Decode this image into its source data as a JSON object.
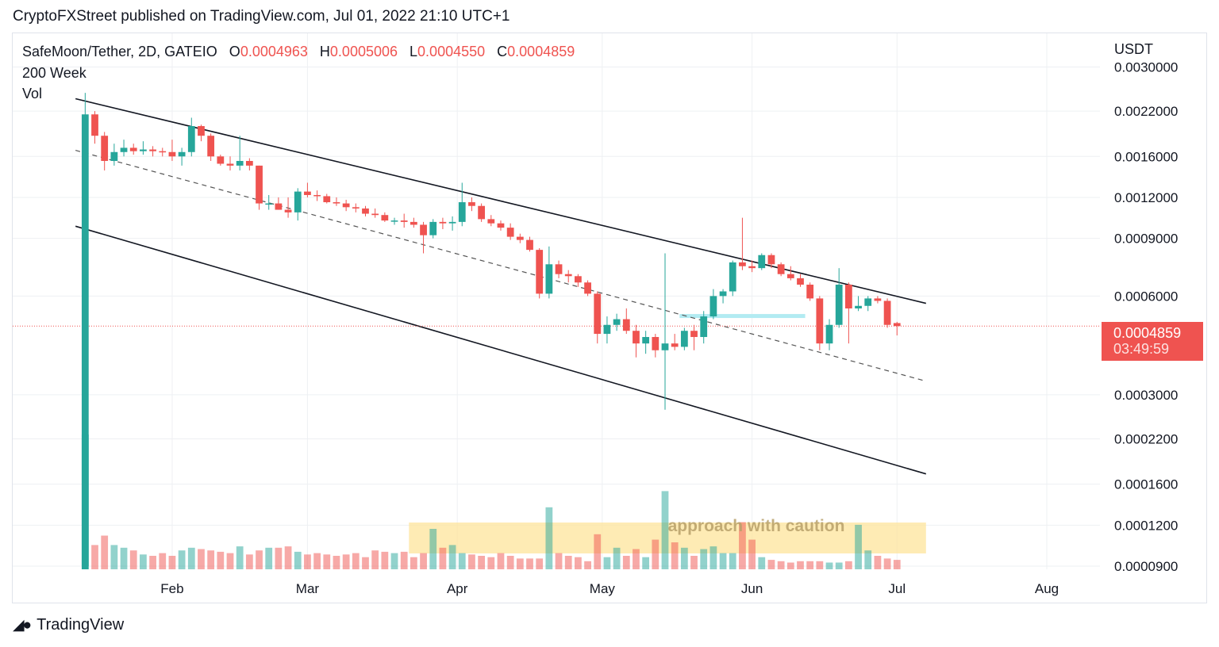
{
  "header": {
    "publisher_line": "CryptoFXStreet published on TradingView.com, Jul 01, 2022 21:10 UTC+1"
  },
  "legend": {
    "symbol": "SafeMoon/Tether, 2D, GATEIO",
    "o_label": "O",
    "o_value": "0.0004963",
    "h_label": "H",
    "h_value": "0.0005006",
    "l_label": "L",
    "l_value": "0.0004550",
    "c_label": "C",
    "c_value": "0.0004859",
    "indicator_1": "200 Week",
    "indicator_2": "Vol"
  },
  "price_axis": {
    "currency": "USDT",
    "last_price": "0.0004859",
    "countdown": "03:49:59"
  },
  "footer": {
    "brand": "TradingView"
  },
  "colors": {
    "up": "#26a69a",
    "down": "#ef5350",
    "grid": "#eef0f3",
    "zone": "#fde49b"
  },
  "chart_data": {
    "type": "candlestick",
    "scale": "log",
    "price_ticks": [
      "0.0030000",
      "0.0022000",
      "0.0016000",
      "0.0012000",
      "0.0009000",
      "0.0006000",
      "0.0003000",
      "0.0002200",
      "0.0001600",
      "0.0001200",
      "0.0000900"
    ],
    "price_tick_values": [
      0.003,
      0.0022,
      0.0016,
      0.0012,
      0.0009,
      0.0006,
      0.0003,
      0.00022,
      0.00016,
      0.00012,
      9e-05
    ],
    "ylim": [
      8.8e-05,
      0.0038
    ],
    "x_ticks": [
      "Feb",
      "Mar",
      "Apr",
      "May",
      "Jun",
      "Jul",
      "Aug"
    ],
    "x_tick_dates": [
      "2022-02-01",
      "2022-03-01",
      "2022-04-01",
      "2022-05-01",
      "2022-06-01",
      "2022-07-01",
      "2022-08-01"
    ],
    "xlim": [
      "2021-12-30",
      "2022-08-12"
    ],
    "annotation": "approach with caution",
    "last_close": 0.0004859,
    "channel": {
      "upper": [
        [
          "2022-01-12",
          0.0024
        ],
        [
          "2022-07-07",
          0.00057
        ]
      ],
      "middle": [
        [
          "2022-01-12",
          0.00167
        ],
        [
          "2022-07-07",
          0.00033
        ]
      ],
      "lower": [
        [
          "2022-01-12",
          0.00098
        ],
        [
          "2022-07-07",
          0.000172
        ]
      ]
    },
    "resistance_zone": {
      "from": "2022-05-17",
      "to": "2022-06-12",
      "price": 0.00052
    },
    "volume_zone": {
      "from": "2022-03-22",
      "to": "2022-07-07",
      "annotation": "approach with caution"
    },
    "candles": [
      {
        "d": "2022-01-14",
        "o": 9e-05,
        "h": 0.0025,
        "l": 9e-05,
        "c": 0.00215,
        "v": 1.0
      },
      {
        "d": "2022-01-16",
        "o": 0.00215,
        "h": 0.0022,
        "l": 0.00175,
        "c": 0.00185,
        "v": 0.18
      },
      {
        "d": "2022-01-18",
        "o": 0.00185,
        "h": 0.0019,
        "l": 0.00145,
        "c": 0.00155,
        "v": 0.25
      },
      {
        "d": "2022-01-20",
        "o": 0.00155,
        "h": 0.00175,
        "l": 0.0015,
        "c": 0.00165,
        "v": 0.18
      },
      {
        "d": "2022-01-22",
        "o": 0.00165,
        "h": 0.0018,
        "l": 0.0016,
        "c": 0.0017,
        "v": 0.16
      },
      {
        "d": "2022-01-24",
        "o": 0.0017,
        "h": 0.00175,
        "l": 0.00162,
        "c": 0.00166,
        "v": 0.14
      },
      {
        "d": "2022-01-26",
        "o": 0.00166,
        "h": 0.00178,
        "l": 0.00162,
        "c": 0.00168,
        "v": 0.11
      },
      {
        "d": "2022-01-28",
        "o": 0.00168,
        "h": 0.00172,
        "l": 0.0016,
        "c": 0.00166,
        "v": 0.1
      },
      {
        "d": "2022-01-30",
        "o": 0.00166,
        "h": 0.0017,
        "l": 0.0016,
        "c": 0.00165,
        "v": 0.12
      },
      {
        "d": "2022-02-01",
        "o": 0.00165,
        "h": 0.0018,
        "l": 0.00155,
        "c": 0.0016,
        "v": 0.1
      },
      {
        "d": "2022-02-03",
        "o": 0.0016,
        "h": 0.0017,
        "l": 0.0015,
        "c": 0.00165,
        "v": 0.14
      },
      {
        "d": "2022-02-05",
        "o": 0.00165,
        "h": 0.0021,
        "l": 0.0016,
        "c": 0.00198,
        "v": 0.16
      },
      {
        "d": "2022-02-07",
        "o": 0.00198,
        "h": 0.002,
        "l": 0.00178,
        "c": 0.00185,
        "v": 0.15
      },
      {
        "d": "2022-02-09",
        "o": 0.00185,
        "h": 0.00188,
        "l": 0.00155,
        "c": 0.0016,
        "v": 0.14
      },
      {
        "d": "2022-02-11",
        "o": 0.0016,
        "h": 0.00162,
        "l": 0.0015,
        "c": 0.00152,
        "v": 0.13
      },
      {
        "d": "2022-02-13",
        "o": 0.00152,
        "h": 0.0016,
        "l": 0.00145,
        "c": 0.0015,
        "v": 0.12
      },
      {
        "d": "2022-02-15",
        "o": 0.0015,
        "h": 0.00185,
        "l": 0.00145,
        "c": 0.00155,
        "v": 0.17
      },
      {
        "d": "2022-02-17",
        "o": 0.00155,
        "h": 0.00158,
        "l": 0.00145,
        "c": 0.0015,
        "v": 0.11
      },
      {
        "d": "2022-02-19",
        "o": 0.0015,
        "h": 0.0015,
        "l": 0.0011,
        "c": 0.00115,
        "v": 0.14
      },
      {
        "d": "2022-02-21",
        "o": 0.00115,
        "h": 0.00122,
        "l": 0.0011,
        "c": 0.00115,
        "v": 0.16
      },
      {
        "d": "2022-02-23",
        "o": 0.00115,
        "h": 0.0012,
        "l": 0.0011,
        "c": 0.0011,
        "v": 0.16
      },
      {
        "d": "2022-02-25",
        "o": 0.0011,
        "h": 0.0012,
        "l": 0.00104,
        "c": 0.00108,
        "v": 0.17
      },
      {
        "d": "2022-02-27",
        "o": 0.00108,
        "h": 0.00128,
        "l": 0.00102,
        "c": 0.00125,
        "v": 0.13
      },
      {
        "d": "2022-03-01",
        "o": 0.00125,
        "h": 0.00133,
        "l": 0.0012,
        "c": 0.00122,
        "v": 0.11
      },
      {
        "d": "2022-03-03",
        "o": 0.00122,
        "h": 0.00126,
        "l": 0.00117,
        "c": 0.00121,
        "v": 0.12
      },
      {
        "d": "2022-03-05",
        "o": 0.00121,
        "h": 0.00123,
        "l": 0.00115,
        "c": 0.00116,
        "v": 0.11
      },
      {
        "d": "2022-03-07",
        "o": 0.00116,
        "h": 0.0012,
        "l": 0.00113,
        "c": 0.00115,
        "v": 0.1
      },
      {
        "d": "2022-03-09",
        "o": 0.00115,
        "h": 0.00118,
        "l": 0.00109,
        "c": 0.00112,
        "v": 0.11
      },
      {
        "d": "2022-03-11",
        "o": 0.00112,
        "h": 0.00115,
        "l": 0.00108,
        "c": 0.00111,
        "v": 0.12
      },
      {
        "d": "2022-03-13",
        "o": 0.00111,
        "h": 0.00113,
        "l": 0.00105,
        "c": 0.00107,
        "v": 0.09
      },
      {
        "d": "2022-03-15",
        "o": 0.00107,
        "h": 0.00111,
        "l": 0.00104,
        "c": 0.00106,
        "v": 0.14
      },
      {
        "d": "2022-03-17",
        "o": 0.00106,
        "h": 0.00108,
        "l": 0.00101,
        "c": 0.00102,
        "v": 0.13
      },
      {
        "d": "2022-03-19",
        "o": 0.00102,
        "h": 0.00104,
        "l": 0.00099,
        "c": 0.00102,
        "v": 0.12
      },
      {
        "d": "2022-03-21",
        "o": 0.00102,
        "h": 0.00107,
        "l": 0.00097,
        "c": 0.00101,
        "v": 0.13
      },
      {
        "d": "2022-03-23",
        "o": 0.00101,
        "h": 0.00104,
        "l": 0.00097,
        "c": 0.00099,
        "v": 0.09
      },
      {
        "d": "2022-03-25",
        "o": 0.00099,
        "h": 0.00101,
        "l": 0.00081,
        "c": 0.00092,
        "v": 0.12
      },
      {
        "d": "2022-03-27",
        "o": 0.00092,
        "h": 0.00103,
        "l": 0.0009,
        "c": 0.00101,
        "v": 0.3
      },
      {
        "d": "2022-03-29",
        "o": 0.00101,
        "h": 0.00104,
        "l": 0.00096,
        "c": 0.001,
        "v": 0.16
      },
      {
        "d": "2022-03-31",
        "o": 0.001,
        "h": 0.00105,
        "l": 0.00095,
        "c": 0.00101,
        "v": 0.18
      },
      {
        "d": "2022-04-02",
        "o": 0.00101,
        "h": 0.00133,
        "l": 0.00098,
        "c": 0.00116,
        "v": 0.12
      },
      {
        "d": "2022-04-04",
        "o": 0.00116,
        "h": 0.0012,
        "l": 0.00109,
        "c": 0.00113,
        "v": 0.11
      },
      {
        "d": "2022-04-06",
        "o": 0.00113,
        "h": 0.00115,
        "l": 0.00101,
        "c": 0.00103,
        "v": 0.1
      },
      {
        "d": "2022-04-08",
        "o": 0.00103,
        "h": 0.00106,
        "l": 0.00098,
        "c": 0.001,
        "v": 0.09
      },
      {
        "d": "2022-04-10",
        "o": 0.001,
        "h": 0.00102,
        "l": 0.00095,
        "c": 0.00097,
        "v": 0.12
      },
      {
        "d": "2022-04-12",
        "o": 0.00097,
        "h": 0.001,
        "l": 0.00089,
        "c": 0.00091,
        "v": 0.1
      },
      {
        "d": "2022-04-14",
        "o": 0.00091,
        "h": 0.00093,
        "l": 0.00087,
        "c": 0.00089,
        "v": 0.08
      },
      {
        "d": "2022-04-16",
        "o": 0.00089,
        "h": 0.00091,
        "l": 0.00082,
        "c": 0.00083,
        "v": 0.08
      },
      {
        "d": "2022-04-18",
        "o": 0.00083,
        "h": 0.00084,
        "l": 0.00059,
        "c": 0.00061,
        "v": 0.08
      },
      {
        "d": "2022-04-20",
        "o": 0.00061,
        "h": 0.00085,
        "l": 0.00059,
        "c": 0.00075,
        "v": 0.46
      },
      {
        "d": "2022-04-22",
        "o": 0.00075,
        "h": 0.00077,
        "l": 0.00068,
        "c": 0.0007,
        "v": 0.12
      },
      {
        "d": "2022-04-24",
        "o": 0.0007,
        "h": 0.00072,
        "l": 0.00066,
        "c": 0.00069,
        "v": 0.1
      },
      {
        "d": "2022-04-26",
        "o": 0.00069,
        "h": 0.0007,
        "l": 0.00064,
        "c": 0.00066,
        "v": 0.09
      },
      {
        "d": "2022-04-28",
        "o": 0.00066,
        "h": 0.00067,
        "l": 0.0006,
        "c": 0.00061,
        "v": 0.06
      },
      {
        "d": "2022-04-30",
        "o": 0.00061,
        "h": 0.00062,
        "l": 0.00043,
        "c": 0.00046,
        "v": 0.26
      },
      {
        "d": "2022-05-02",
        "o": 0.00046,
        "h": 0.00052,
        "l": 0.00043,
        "c": 0.00049,
        "v": 0.09
      },
      {
        "d": "2022-05-04",
        "o": 0.00049,
        "h": 0.00053,
        "l": 0.00047,
        "c": 0.00051,
        "v": 0.16
      },
      {
        "d": "2022-05-06",
        "o": 0.00051,
        "h": 0.00055,
        "l": 0.00046,
        "c": 0.00047,
        "v": 0.1
      },
      {
        "d": "2022-05-08",
        "o": 0.00047,
        "h": 0.00049,
        "l": 0.00039,
        "c": 0.00043,
        "v": 0.15
      },
      {
        "d": "2022-05-10",
        "o": 0.00043,
        "h": 0.00047,
        "l": 0.0004,
        "c": 0.00045,
        "v": 0.09
      },
      {
        "d": "2022-05-12",
        "o": 0.00045,
        "h": 0.00046,
        "l": 0.00039,
        "c": 0.00041,
        "v": 0.22
      },
      {
        "d": "2022-05-14",
        "o": 0.00041,
        "h": 0.00081,
        "l": 0.00027,
        "c": 0.00043,
        "v": 0.58
      },
      {
        "d": "2022-05-16",
        "o": 0.00043,
        "h": 0.00046,
        "l": 0.00041,
        "c": 0.00042,
        "v": 0.2
      },
      {
        "d": "2022-05-18",
        "o": 0.00042,
        "h": 0.00048,
        "l": 0.00041,
        "c": 0.00047,
        "v": 0.16
      },
      {
        "d": "2022-05-20",
        "o": 0.00047,
        "h": 0.00049,
        "l": 0.00041,
        "c": 0.00045,
        "v": 0.1
      },
      {
        "d": "2022-05-22",
        "o": 0.00045,
        "h": 0.00054,
        "l": 0.00043,
        "c": 0.00052,
        "v": 0.15
      },
      {
        "d": "2022-05-24",
        "o": 0.00052,
        "h": 0.00063,
        "l": 0.00051,
        "c": 0.0006,
        "v": 0.17
      },
      {
        "d": "2022-05-26",
        "o": 0.0006,
        "h": 0.00063,
        "l": 0.00057,
        "c": 0.00062,
        "v": 0.12
      },
      {
        "d": "2022-05-28",
        "o": 0.00062,
        "h": 0.00077,
        "l": 0.0006,
        "c": 0.00076,
        "v": 0.12
      },
      {
        "d": "2022-05-30",
        "o": 0.00076,
        "h": 0.00104,
        "l": 0.00072,
        "c": 0.00074,
        "v": 0.35
      },
      {
        "d": "2022-06-01",
        "o": 0.00074,
        "h": 0.00077,
        "l": 0.00071,
        "c": 0.00073,
        "v": 0.22
      },
      {
        "d": "2022-06-03",
        "o": 0.00073,
        "h": 0.00081,
        "l": 0.00072,
        "c": 0.0008,
        "v": 0.09
      },
      {
        "d": "2022-06-05",
        "o": 0.0008,
        "h": 0.00081,
        "l": 0.00073,
        "c": 0.00075,
        "v": 0.07
      },
      {
        "d": "2022-06-07",
        "o": 0.00075,
        "h": 0.00076,
        "l": 0.00069,
        "c": 0.0007,
        "v": 0.06
      },
      {
        "d": "2022-06-09",
        "o": 0.0007,
        "h": 0.00074,
        "l": 0.00067,
        "c": 0.00068,
        "v": 0.05
      },
      {
        "d": "2022-06-11",
        "o": 0.00068,
        "h": 0.0007,
        "l": 0.00064,
        "c": 0.00065,
        "v": 0.06
      },
      {
        "d": "2022-06-13",
        "o": 0.00065,
        "h": 0.00066,
        "l": 0.00058,
        "c": 0.00059,
        "v": 0.06
      },
      {
        "d": "2022-06-15",
        "o": 0.00059,
        "h": 0.0006,
        "l": 0.00041,
        "c": 0.00043,
        "v": 0.06
      },
      {
        "d": "2022-06-17",
        "o": 0.00043,
        "h": 0.00051,
        "l": 0.00041,
        "c": 0.00049,
        "v": 0.05
      },
      {
        "d": "2022-06-19",
        "o": 0.00049,
        "h": 0.00073,
        "l": 0.00048,
        "c": 0.00065,
        "v": 0.05
      },
      {
        "d": "2022-06-21",
        "o": 0.00065,
        "h": 0.00066,
        "l": 0.00043,
        "c": 0.00055,
        "v": 0.06
      },
      {
        "d": "2022-06-23",
        "o": 0.00055,
        "h": 0.0006,
        "l": 0.00054,
        "c": 0.00056,
        "v": 0.33
      },
      {
        "d": "2022-06-25",
        "o": 0.00056,
        "h": 0.0006,
        "l": 0.00054,
        "c": 0.00059,
        "v": 0.14
      },
      {
        "d": "2022-06-27",
        "o": 0.00059,
        "h": 0.0006,
        "l": 0.00057,
        "c": 0.00058,
        "v": 0.1
      },
      {
        "d": "2022-06-29",
        "o": 0.00058,
        "h": 0.00059,
        "l": 0.00048,
        "c": 0.00049,
        "v": 0.08
      },
      {
        "d": "2022-07-01",
        "o": 0.0004963,
        "h": 0.0005006,
        "l": 0.000455,
        "c": 0.0004859,
        "v": 0.07
      }
    ]
  }
}
